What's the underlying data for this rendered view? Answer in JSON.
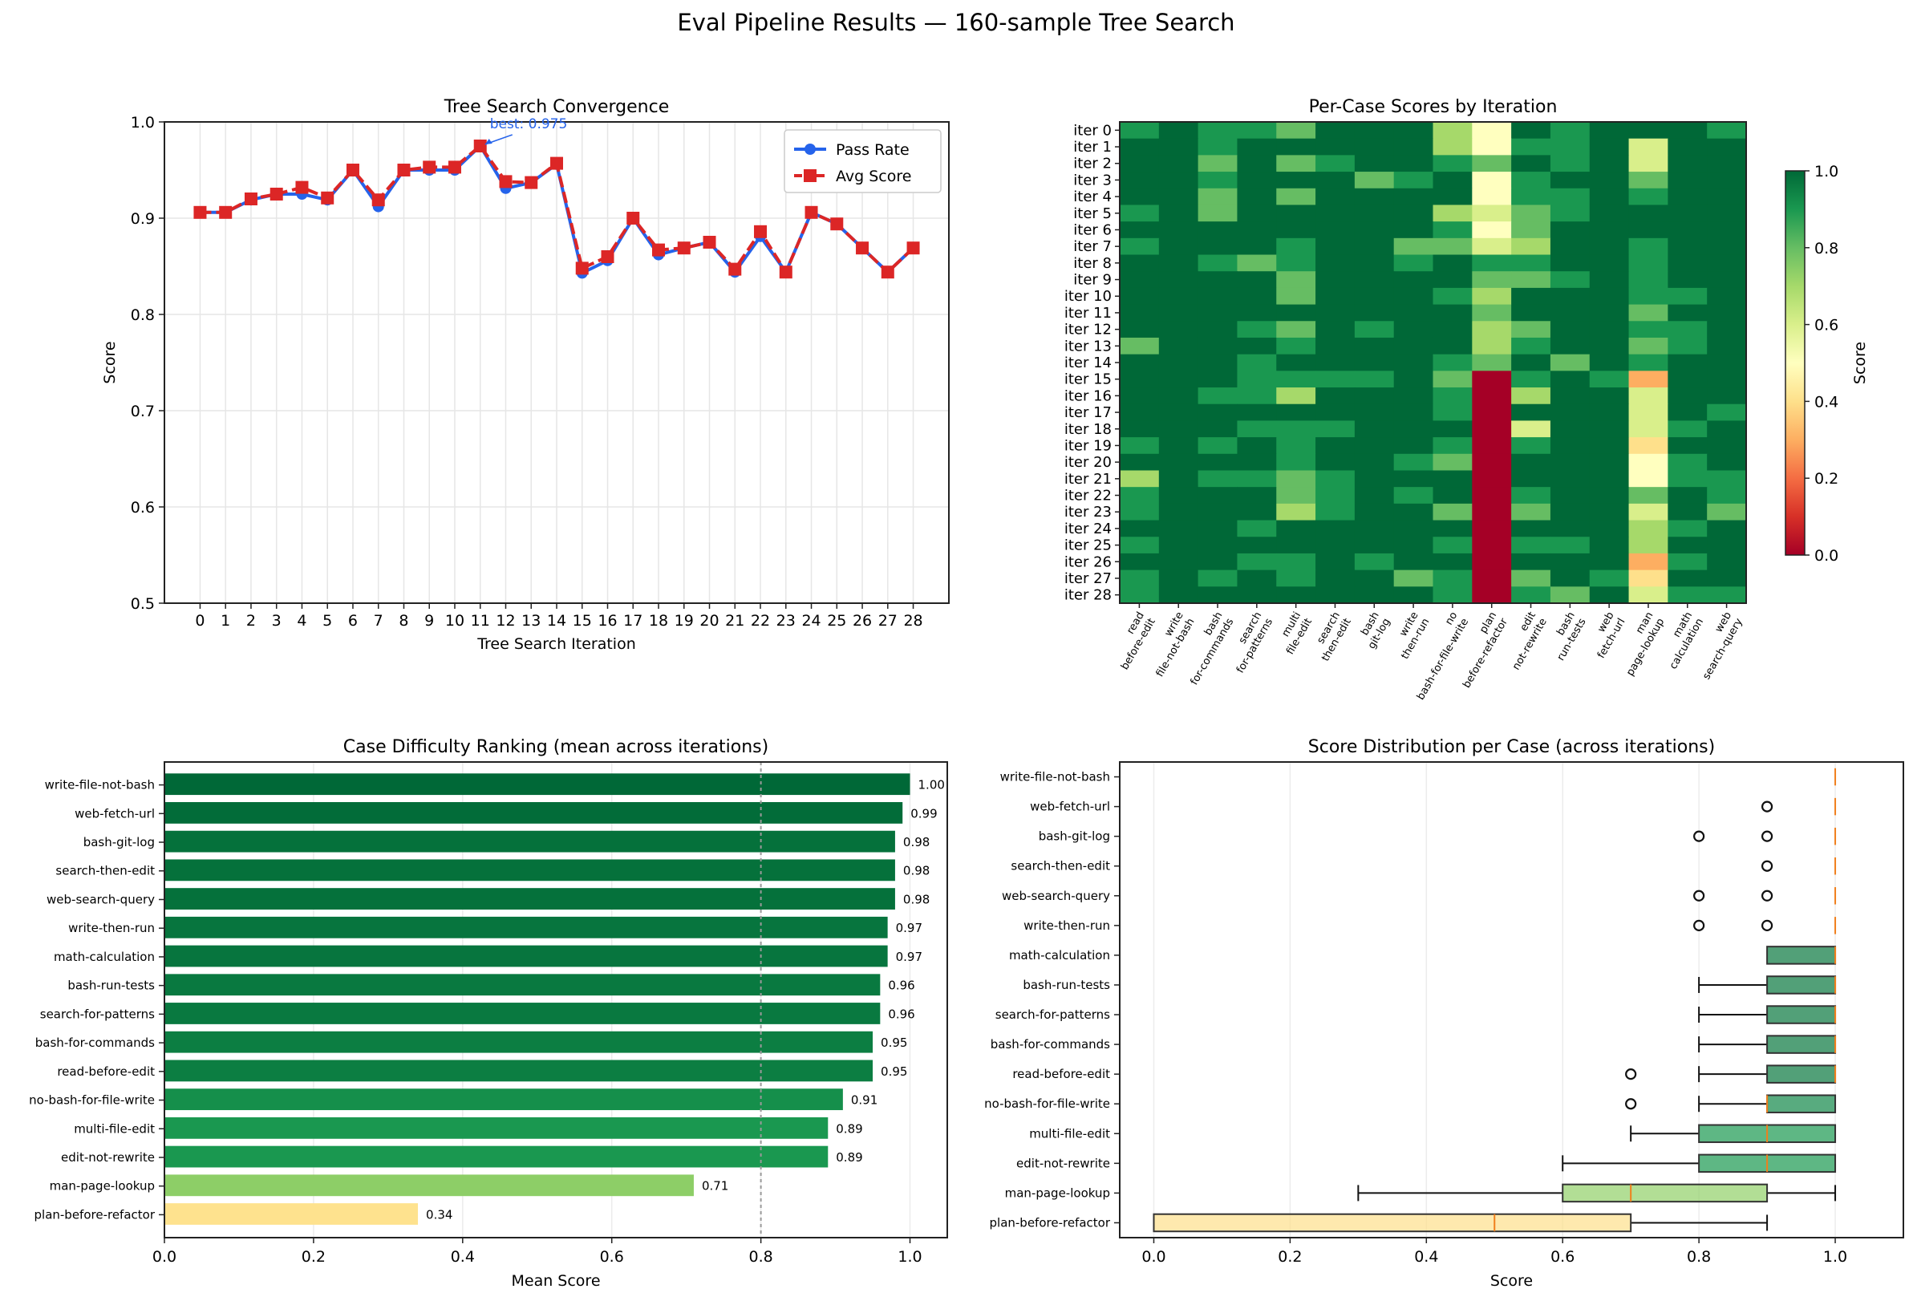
{
  "suptitle": "Eval Pipeline Results — 160-sample Tree Search",
  "chart_data": [
    {
      "id": "convergence",
      "type": "line",
      "title": "Tree Search Convergence",
      "xlabel": "Tree Search Iteration",
      "ylabel": "Score",
      "ylim": [
        0.5,
        1.0
      ],
      "yticks": [
        "0.5",
        "0.6",
        "0.7",
        "0.8",
        "0.9",
        "1.0"
      ],
      "x": [
        0,
        1,
        2,
        3,
        4,
        5,
        6,
        7,
        8,
        9,
        10,
        11,
        12,
        13,
        14,
        15,
        16,
        17,
        18,
        19,
        20,
        21,
        22,
        23,
        24,
        25,
        26,
        27,
        28
      ],
      "grid": true,
      "legend_position": "top-right",
      "series": [
        {
          "name": "Pass Rate",
          "color": "#2563eb",
          "marker": "circle",
          "linestyle": "solid",
          "values": [
            0.906,
            0.906,
            0.919,
            0.925,
            0.925,
            0.919,
            0.95,
            0.912,
            0.95,
            0.95,
            0.95,
            0.975,
            0.931,
            0.937,
            0.956,
            0.843,
            0.856,
            0.9,
            0.862,
            0.869,
            0.875,
            0.844,
            0.881,
            0.844,
            0.906,
            0.894,
            0.869,
            0.844,
            0.869
          ]
        },
        {
          "name": "Avg Score",
          "color": "#dc2626",
          "marker": "square",
          "linestyle": "dashed",
          "values": [
            0.906,
            0.906,
            0.92,
            0.925,
            0.932,
            0.921,
            0.95,
            0.919,
            0.95,
            0.953,
            0.953,
            0.975,
            0.938,
            0.937,
            0.957,
            0.848,
            0.86,
            0.9,
            0.867,
            0.869,
            0.875,
            0.847,
            0.886,
            0.844,
            0.906,
            0.894,
            0.869,
            0.844,
            0.869
          ]
        }
      ],
      "annotation": {
        "text": "best: 0.975",
        "x": 11,
        "y": 0.975,
        "color": "#2563eb"
      }
    },
    {
      "id": "heatmap",
      "type": "heatmap",
      "title": "Per-Case Scores by Iteration",
      "colorbar_label": "Score",
      "colorbar_ticks": [
        "0.0",
        "0.2",
        "0.4",
        "0.6",
        "0.8",
        "1.0"
      ],
      "vmin": 0,
      "vmax": 1,
      "colormap": "RdYlGn",
      "columns": [
        "read\nbefore-edit",
        "write\nfile-not-bash",
        "bash\nfor-commands",
        "search\nfor-patterns",
        "multi\nfile-edit",
        "search\nthen-edit",
        "bash\ngit-log",
        "write\nthen-run",
        "no\nbash-for-file-write",
        "plan\nbefore-refactor",
        "edit\nnot-rewrite",
        "bash\nrun-tests",
        "web\nfetch-url",
        "man\npage-lookup",
        "math\ncalculation",
        "web\nsearch-query"
      ],
      "rows": [
        "iter 0",
        "iter 1",
        "iter 2",
        "iter 3",
        "iter 4",
        "iter 5",
        "iter 6",
        "iter 7",
        "iter 8",
        "iter 9",
        "iter 10",
        "iter 11",
        "iter 12",
        "iter 13",
        "iter 14",
        "iter 15",
        "iter 16",
        "iter 17",
        "iter 18",
        "iter 19",
        "iter 20",
        "iter 21",
        "iter 22",
        "iter 23",
        "iter 24",
        "iter 25",
        "iter 26",
        "iter 27",
        "iter 28"
      ],
      "values": [
        [
          0.9,
          1,
          0.9,
          0.9,
          0.8,
          1,
          1,
          1,
          0.7,
          0.5,
          1,
          0.9,
          1,
          1,
          1,
          0.9
        ],
        [
          1,
          1,
          0.9,
          1,
          1,
          1,
          1,
          1,
          0.7,
          0.5,
          0.9,
          0.9,
          1,
          0.6,
          1,
          1
        ],
        [
          1,
          1,
          0.8,
          1,
          0.8,
          0.9,
          1,
          1,
          0.9,
          0.8,
          1,
          0.9,
          1,
          0.6,
          1,
          1
        ],
        [
          1,
          1,
          0.9,
          1,
          1,
          1,
          0.8,
          0.9,
          1,
          0.5,
          0.9,
          1,
          1,
          0.8,
          1,
          1
        ],
        [
          1,
          1,
          0.8,
          1,
          0.8,
          1,
          1,
          1,
          1,
          0.5,
          0.9,
          0.9,
          1,
          0.9,
          1,
          1
        ],
        [
          0.9,
          1,
          0.8,
          1,
          1,
          1,
          1,
          1,
          0.7,
          0.6,
          0.8,
          0.9,
          1,
          1,
          1,
          1
        ],
        [
          1,
          1,
          1,
          1,
          1,
          1,
          1,
          1,
          0.9,
          0.5,
          0.8,
          1,
          1,
          1,
          1,
          1
        ],
        [
          0.9,
          1,
          1,
          1,
          0.9,
          1,
          1,
          0.8,
          0.8,
          0.6,
          0.7,
          1,
          1,
          0.9,
          1,
          1
        ],
        [
          1,
          1,
          0.9,
          0.8,
          0.9,
          1,
          1,
          0.9,
          1,
          0.9,
          0.9,
          1,
          1,
          0.9,
          1,
          1
        ],
        [
          1,
          1,
          1,
          1,
          0.8,
          1,
          1,
          1,
          1,
          0.8,
          0.8,
          0.9,
          1,
          0.9,
          1,
          1
        ],
        [
          1,
          1,
          1,
          1,
          0.8,
          1,
          1,
          1,
          0.9,
          0.7,
          1,
          1,
          1,
          0.9,
          0.9,
          1
        ],
        [
          1,
          1,
          1,
          1,
          1,
          1,
          1,
          1,
          1,
          0.8,
          1,
          1,
          1,
          0.8,
          1,
          1
        ],
        [
          1,
          1,
          1,
          0.9,
          0.8,
          1,
          0.9,
          1,
          1,
          0.7,
          0.8,
          1,
          1,
          0.9,
          0.9,
          1
        ],
        [
          0.8,
          1,
          1,
          1,
          0.9,
          1,
          1,
          1,
          1,
          0.7,
          0.9,
          1,
          1,
          0.8,
          0.9,
          1
        ],
        [
          1,
          1,
          1,
          0.9,
          1,
          1,
          1,
          1,
          0.9,
          0.8,
          1,
          0.8,
          1,
          0.9,
          1,
          1
        ],
        [
          1,
          1,
          1,
          0.9,
          0.9,
          0.9,
          0.9,
          1,
          0.8,
          0,
          0.9,
          1,
          0.9,
          0.3,
          1,
          1
        ],
        [
          1,
          1,
          0.9,
          0.9,
          0.7,
          1,
          1,
          1,
          0.9,
          0,
          0.7,
          1,
          1,
          0.6,
          1,
          1
        ],
        [
          1,
          1,
          1,
          1,
          1,
          1,
          1,
          1,
          0.9,
          0,
          1,
          1,
          1,
          0.6,
          1,
          0.9
        ],
        [
          1,
          1,
          1,
          0.9,
          0.9,
          0.9,
          1,
          1,
          1,
          0,
          0.6,
          1,
          1,
          0.6,
          0.9,
          1
        ],
        [
          0.9,
          1,
          0.9,
          1,
          0.9,
          1,
          1,
          1,
          0.9,
          0,
          0.9,
          1,
          1,
          0.4,
          1,
          1
        ],
        [
          1,
          1,
          1,
          1,
          0.9,
          1,
          1,
          0.9,
          0.8,
          0,
          1,
          1,
          1,
          0.5,
          0.9,
          1
        ],
        [
          0.7,
          1,
          0.9,
          0.9,
          0.8,
          0.9,
          1,
          1,
          1,
          0,
          1,
          1,
          1,
          0.5,
          0.9,
          0.9
        ],
        [
          0.9,
          1,
          1,
          1,
          0.8,
          0.9,
          1,
          0.9,
          1,
          0,
          0.9,
          1,
          1,
          0.8,
          1,
          0.9
        ],
        [
          0.9,
          1,
          1,
          1,
          0.7,
          0.9,
          1,
          1,
          0.8,
          0,
          0.8,
          1,
          1,
          0.6,
          1,
          0.8
        ],
        [
          1,
          1,
          1,
          0.9,
          1,
          1,
          1,
          1,
          1,
          0,
          1,
          1,
          1,
          0.7,
          0.9,
          1
        ],
        [
          0.9,
          1,
          1,
          1,
          1,
          1,
          1,
          1,
          0.9,
          0,
          0.9,
          0.9,
          1,
          0.7,
          1,
          1
        ],
        [
          1,
          1,
          1,
          0.9,
          0.9,
          1,
          0.9,
          1,
          1,
          0,
          1,
          1,
          1,
          0.3,
          0.9,
          1
        ],
        [
          0.9,
          1,
          0.9,
          1,
          0.9,
          1,
          1,
          0.8,
          0.9,
          0,
          0.8,
          1,
          0.9,
          0.4,
          1,
          1
        ],
        [
          0.9,
          1,
          1,
          1,
          1,
          1,
          1,
          1,
          0.9,
          0,
          0.9,
          0.8,
          1,
          0.6,
          0.9,
          0.9
        ]
      ]
    },
    {
      "id": "ranking",
      "type": "bar",
      "orientation": "horizontal",
      "title": "Case Difficulty Ranking (mean across iterations)",
      "xlabel": "Mean Score",
      "ylabel": "",
      "xlim": [
        0,
        1.05
      ],
      "xticks": [
        "0.0",
        "0.2",
        "0.4",
        "0.6",
        "0.8",
        "1.0"
      ],
      "reference_line": 0.8,
      "categories": [
        "write-file-not-bash",
        "web-fetch-url",
        "bash-git-log",
        "search-then-edit",
        "web-search-query",
        "write-then-run",
        "math-calculation",
        "bash-run-tests",
        "search-for-patterns",
        "bash-for-commands",
        "read-before-edit",
        "no-bash-for-file-write",
        "multi-file-edit",
        "edit-not-rewrite",
        "man-page-lookup",
        "plan-before-refactor"
      ],
      "values": [
        1.0,
        0.99,
        0.98,
        0.98,
        0.98,
        0.97,
        0.97,
        0.96,
        0.96,
        0.95,
        0.95,
        0.91,
        0.89,
        0.89,
        0.71,
        0.34
      ],
      "labels": [
        "1.00",
        "0.99",
        "0.98",
        "0.98",
        "0.98",
        "0.97",
        "0.97",
        "0.96",
        "0.96",
        "0.95",
        "0.95",
        "0.91",
        "0.89",
        "0.89",
        "0.71",
        "0.34"
      ]
    },
    {
      "id": "distribution",
      "type": "box",
      "title": "Score Distribution per Case (across iterations)",
      "xlabel": "Score",
      "xlim": [
        -0.05,
        1.1
      ],
      "xticks": [
        "0.0",
        "0.2",
        "0.4",
        "0.6",
        "0.8",
        "1.0"
      ],
      "categories": [
        "write-file-not-bash",
        "web-fetch-url",
        "bash-git-log",
        "search-then-edit",
        "web-search-query",
        "write-then-run",
        "math-calculation",
        "bash-run-tests",
        "search-for-patterns",
        "bash-for-commands",
        "read-before-edit",
        "no-bash-for-file-write",
        "multi-file-edit",
        "edit-not-rewrite",
        "man-page-lookup",
        "plan-before-refactor"
      ],
      "boxes": [
        {
          "min": 1.0,
          "q1": 1.0,
          "median": 1.0,
          "q3": 1.0,
          "max": 1.0,
          "outliers": []
        },
        {
          "min": 1.0,
          "q1": 1.0,
          "median": 1.0,
          "q3": 1.0,
          "max": 1.0,
          "outliers": [
            0.9
          ]
        },
        {
          "min": 1.0,
          "q1": 1.0,
          "median": 1.0,
          "q3": 1.0,
          "max": 1.0,
          "outliers": [
            0.8,
            0.9
          ]
        },
        {
          "min": 1.0,
          "q1": 1.0,
          "median": 1.0,
          "q3": 1.0,
          "max": 1.0,
          "outliers": [
            0.9
          ]
        },
        {
          "min": 1.0,
          "q1": 1.0,
          "median": 1.0,
          "q3": 1.0,
          "max": 1.0,
          "outliers": [
            0.8,
            0.9
          ]
        },
        {
          "min": 1.0,
          "q1": 1.0,
          "median": 1.0,
          "q3": 1.0,
          "max": 1.0,
          "outliers": [
            0.8,
            0.9
          ]
        },
        {
          "min": 0.9,
          "q1": 0.9,
          "median": 1.0,
          "q3": 1.0,
          "max": 1.0,
          "outliers": []
        },
        {
          "min": 0.8,
          "q1": 0.9,
          "median": 1.0,
          "q3": 1.0,
          "max": 1.0,
          "outliers": []
        },
        {
          "min": 0.8,
          "q1": 0.9,
          "median": 1.0,
          "q3": 1.0,
          "max": 1.0,
          "outliers": []
        },
        {
          "min": 0.8,
          "q1": 0.9,
          "median": 1.0,
          "q3": 1.0,
          "max": 1.0,
          "outliers": []
        },
        {
          "min": 0.8,
          "q1": 0.9,
          "median": 1.0,
          "q3": 1.0,
          "max": 1.0,
          "outliers": [
            0.7
          ]
        },
        {
          "min": 0.8,
          "q1": 0.9,
          "median": 0.9,
          "q3": 1.0,
          "max": 1.0,
          "outliers": [
            0.7
          ]
        },
        {
          "min": 0.7,
          "q1": 0.8,
          "median": 0.9,
          "q3": 1.0,
          "max": 1.0,
          "outliers": []
        },
        {
          "min": 0.6,
          "q1": 0.8,
          "median": 0.9,
          "q3": 1.0,
          "max": 1.0,
          "outliers": []
        },
        {
          "min": 0.3,
          "q1": 0.6,
          "median": 0.7,
          "q3": 0.9,
          "max": 1.0,
          "outliers": []
        },
        {
          "min": 0.0,
          "q1": 0.0,
          "median": 0.5,
          "q3": 0.7,
          "max": 0.9,
          "outliers": []
        }
      ]
    }
  ]
}
